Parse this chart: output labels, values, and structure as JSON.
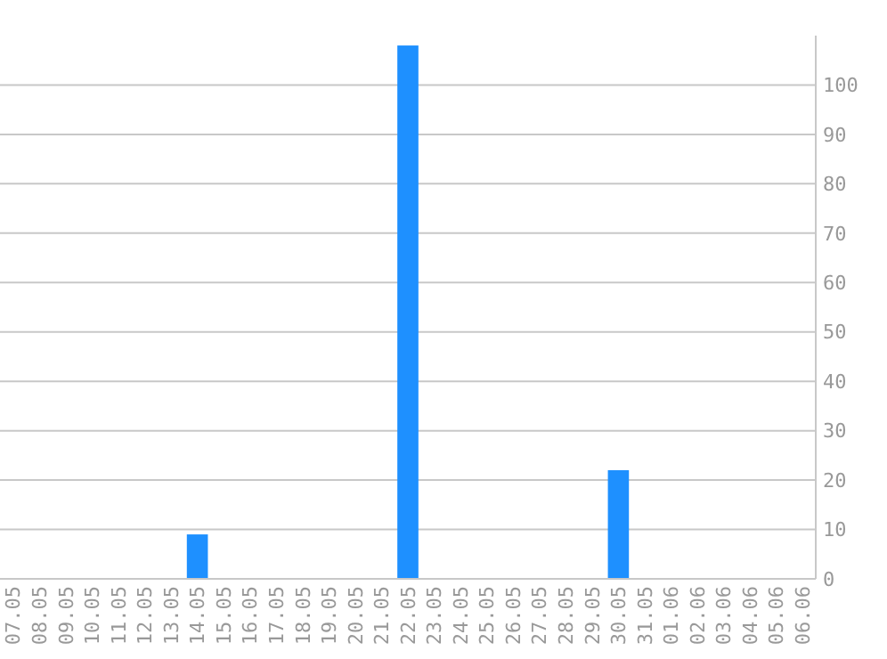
{
  "chart_data": {
    "type": "bar",
    "categories": [
      "07.05",
      "08.05",
      "09.05",
      "10.05",
      "11.05",
      "12.05",
      "13.05",
      "14.05",
      "15.05",
      "16.05",
      "17.05",
      "18.05",
      "19.05",
      "20.05",
      "21.05",
      "22.05",
      "23.05",
      "24.05",
      "25.05",
      "26.05",
      "27.05",
      "28.05",
      "29.05",
      "30.05",
      "31.05",
      "01.06",
      "02.06",
      "03.06",
      "04.06",
      "05.06",
      "06.06"
    ],
    "values": [
      0,
      0,
      0,
      0,
      0,
      0,
      0,
      9,
      0,
      0,
      0,
      0,
      0,
      0,
      0,
      108,
      0,
      0,
      0,
      0,
      0,
      0,
      0,
      22,
      0,
      0,
      0,
      0,
      0,
      0,
      0
    ],
    "color": "#1e90ff",
    "ylim": [
      0,
      110
    ],
    "yticks": [
      0,
      10,
      20,
      30,
      40,
      50,
      60,
      70,
      80,
      90,
      100
    ],
    "grid": "y"
  }
}
